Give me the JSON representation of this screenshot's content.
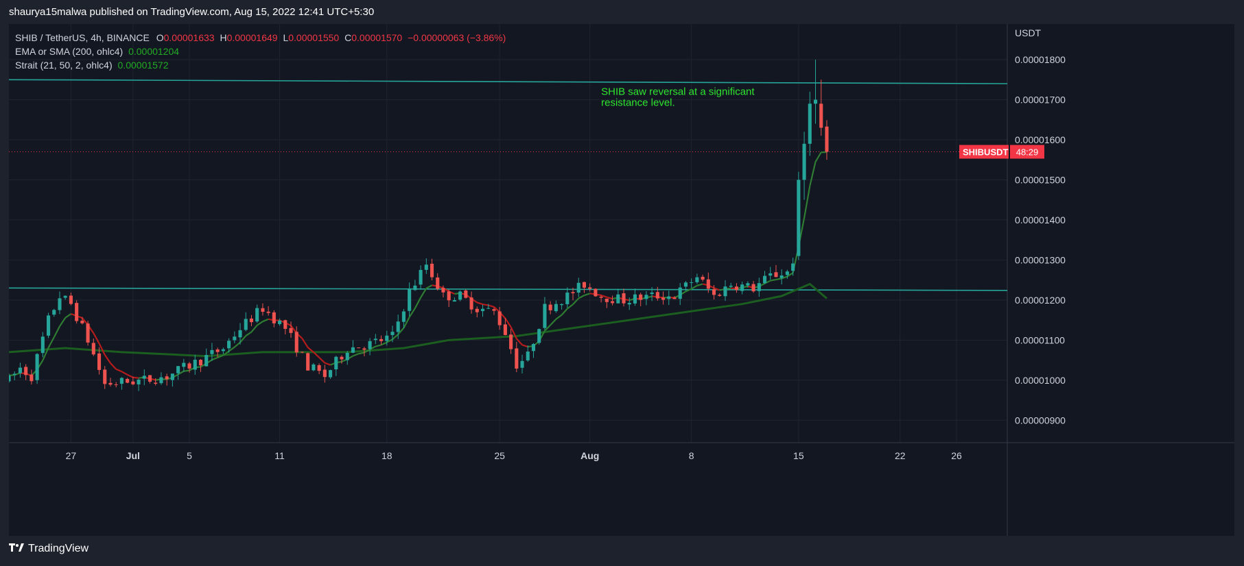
{
  "header": {
    "published": "shaurya15malwa published on TradingView.com, Aug 15, 2022 12:41 UTC+5:30"
  },
  "footer": {
    "brand": "TradingView",
    "logo_icon": "tradingview-logo-icon"
  },
  "legend": {
    "symbol": "SHIB / TetherUS, 4h, BINANCE",
    "open_label": "O",
    "open": "0.00001633",
    "high_label": "H",
    "high": "0.00001649",
    "low_label": "L",
    "low": "0.00001550",
    "close_label": "C",
    "close": "0.00001570",
    "change": "−0.00000063 (−3.86%)",
    "ind1_name": "EMA or SMA (200, ohlc4)",
    "ind1_value": "0.00001204",
    "ind2_name": "Strait (21, 50, 2, ohlc4)",
    "ind2_value": "0.00001572"
  },
  "colors": {
    "up": "#26a69a",
    "down": "#ef5350",
    "ema200": "#1b5e20",
    "strait_up": "#2e7d32",
    "strait_down": "#b71c1c",
    "resistance": "#26a69a",
    "annotation": "#2ee62e",
    "badge": "#f23645"
  },
  "chart_data": {
    "type": "candlestick",
    "title": "SHIB / TetherUS, 4h, BINANCE",
    "y_unit": "USDT",
    "y_ticks": [
      9e-06,
      1e-05,
      1.1e-05,
      1.2e-05,
      1.3e-05,
      1.4e-05,
      1.5e-05,
      1.6e-05,
      1.7e-05,
      1.8e-05
    ],
    "y_tick_labels": [
      "0.00000900",
      "0.00001000",
      "0.00001100",
      "0.00001200",
      "0.00001300",
      "0.00001400",
      "0.00001500",
      "0.00001600",
      "0.00001700",
      "0.00001800"
    ],
    "ylim": [
      8.44e-06,
      1.889e-05
    ],
    "x_tick_labels": [
      "27",
      "Jul",
      "5",
      "11",
      "18",
      "25",
      "Aug",
      "8",
      "15",
      "22",
      "26"
    ],
    "x_tick_index": [
      11,
      22,
      32,
      48,
      67,
      87,
      103,
      121,
      140,
      158,
      168
    ],
    "x_range": [
      0,
      177
    ],
    "grid": true,
    "price_anchors": [
      [
        0,
        1e-05
      ],
      [
        2,
        1.03e-05
      ],
      [
        4,
        1.01e-05
      ],
      [
        7,
        1.15e-05
      ],
      [
        9,
        1.21e-05
      ],
      [
        11,
        1.19e-05
      ],
      [
        14,
        1.1e-05
      ],
      [
        17,
        9.9e-06
      ],
      [
        20,
        9.95e-06
      ],
      [
        24,
        1e-05
      ],
      [
        28,
        1.01e-05
      ],
      [
        34,
        1.05e-05
      ],
      [
        38,
        1.08e-05
      ],
      [
        41,
        1.13e-05
      ],
      [
        45,
        1.18e-05
      ],
      [
        49,
        1.13e-05
      ],
      [
        53,
        1.035e-05
      ],
      [
        56,
        1.01e-05
      ],
      [
        60,
        1.08e-05
      ],
      [
        64,
        1.09e-05
      ],
      [
        68,
        1.11e-05
      ],
      [
        71,
        1.22e-05
      ],
      [
        74,
        1.29e-05
      ],
      [
        77,
        1.21e-05
      ],
      [
        80,
        1.21e-05
      ],
      [
        83,
        1.18e-05
      ],
      [
        86,
        1.17e-05
      ],
      [
        88,
        1.12e-05
      ],
      [
        90,
        1.04e-05
      ],
      [
        92,
        1.06e-05
      ],
      [
        95,
        1.18e-05
      ],
      [
        99,
        1.21e-05
      ],
      [
        102,
        1.24e-05
      ],
      [
        105,
        1.21e-05
      ],
      [
        109,
        1.2e-05
      ],
      [
        114,
        1.21e-05
      ],
      [
        118,
        1.21e-05
      ],
      [
        122,
        1.26e-05
      ],
      [
        125,
        1.21e-05
      ],
      [
        128,
        1.24e-05
      ],
      [
        132,
        1.23e-05
      ],
      [
        135,
        1.26e-05
      ],
      [
        138,
        1.27e-05
      ],
      [
        139,
        1.3e-05
      ],
      [
        140,
        1.46e-05
      ],
      [
        141,
        1.6e-05
      ],
      [
        142,
        1.68e-05
      ],
      [
        143,
        1.69e-05
      ],
      [
        144,
        1.63e-05
      ],
      [
        145,
        1.57e-05
      ]
    ],
    "spike_candles": [
      {
        "i": 140,
        "o": 1.31e-05,
        "h": 1.52e-05,
        "l": 1.3e-05,
        "c": 1.5e-05
      },
      {
        "i": 141,
        "o": 1.5e-05,
        "h": 1.62e-05,
        "l": 1.45e-05,
        "c": 1.59e-05
      },
      {
        "i": 142,
        "o": 1.59e-05,
        "h": 1.72e-05,
        "l": 1.56e-05,
        "c": 1.69e-05
      },
      {
        "i": 143,
        "o": 1.69e-05,
        "h": 1.8e-05,
        "l": 1.64e-05,
        "c": 1.7e-05
      },
      {
        "i": 144,
        "o": 1.69e-05,
        "h": 1.75e-05,
        "l": 1.61e-05,
        "c": 1.63e-05
      },
      {
        "i": 145,
        "o": 1.633e-05,
        "h": 1.649e-05,
        "l": 1.55e-05,
        "c": 1.57e-05
      }
    ],
    "ema200": [
      [
        0,
        1.07e-05
      ],
      [
        10,
        1.08e-05
      ],
      [
        20,
        1.07e-05
      ],
      [
        35,
        1.06e-05
      ],
      [
        45,
        1.07e-05
      ],
      [
        60,
        1.07e-05
      ],
      [
        70,
        1.08e-05
      ],
      [
        78,
        1.1e-05
      ],
      [
        90,
        1.11e-05
      ],
      [
        100,
        1.13e-05
      ],
      [
        110,
        1.15e-05
      ],
      [
        120,
        1.17e-05
      ],
      [
        130,
        1.19e-05
      ],
      [
        137,
        1.21e-05
      ],
      [
        142,
        1.24e-05
      ],
      [
        145,
        1.204e-05
      ]
    ],
    "resistance_lines": [
      {
        "from": [
          0,
          1.75e-05
        ],
        "to": [
          177,
          1.74e-05
        ]
      },
      {
        "from": [
          0,
          1.23e-05
        ],
        "to": [
          177,
          1.224e-05
        ]
      }
    ],
    "last_price": 1.57e-05,
    "price_label": {
      "symbol": "SHIBUSDT",
      "countdown": "48:29"
    },
    "annotation": {
      "text_line1": "SHIB saw reversal at a significant",
      "text_line2": "resistance level.",
      "x": 105,
      "y": 1.705e-05
    }
  }
}
